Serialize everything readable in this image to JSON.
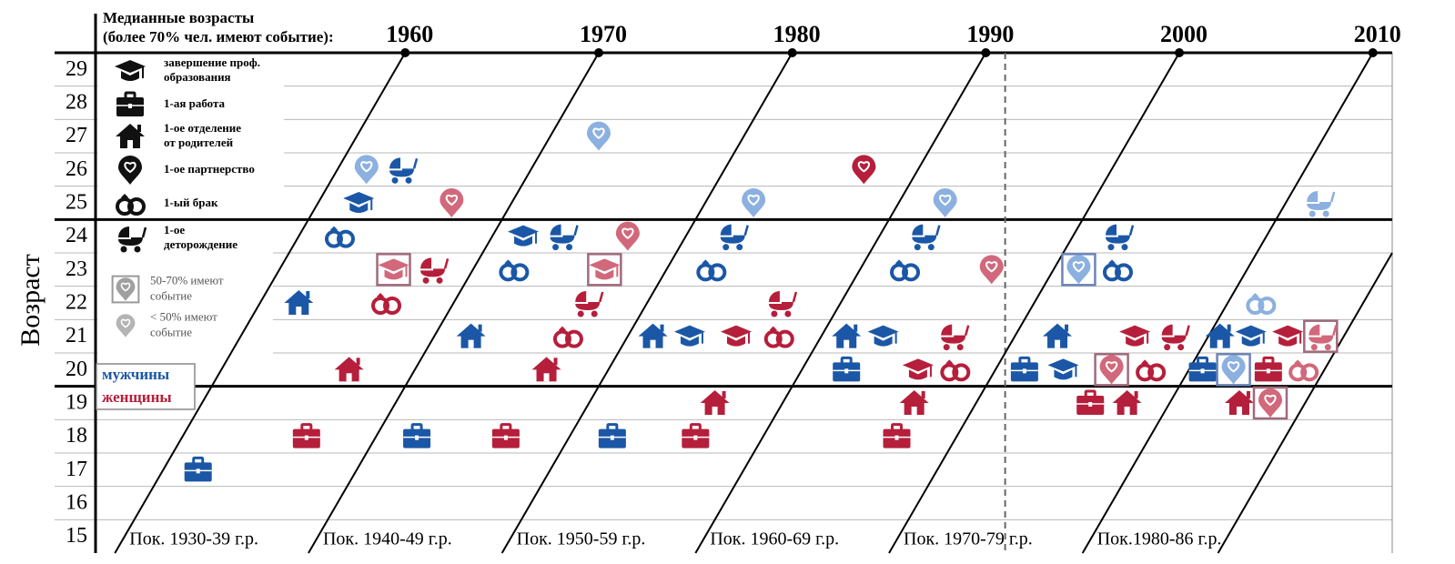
{
  "chart_data": {
    "type": "lexis",
    "title": [
      "Медианные возрасты",
      "(более 70% чел. имеют событие):"
    ],
    "ylabel": "Возраст",
    "xlim": [
      1944,
      2011
    ],
    "xticks": [
      1960,
      1970,
      1980,
      1990,
      2000,
      2010
    ],
    "ylim": [
      14.5,
      29.5
    ],
    "yticks": [
      15,
      16,
      17,
      18,
      19,
      20,
      21,
      22,
      23,
      24,
      25,
      26,
      27,
      28,
      29
    ],
    "hlines": [
      29.5,
      24.5,
      19.5
    ],
    "vline": 1991,
    "cohort_lines": [
      1930,
      1940,
      1950,
      1960,
      1970,
      1980,
      1987
    ],
    "cohort_labels": [
      "Пок. 1930-39 г.р.",
      "Пок. 1940-49 г.р.",
      "Пок. 1950-59 г.р.",
      "Пок. 1960-69 г.р.",
      "Пок. 1970-79 г.р.",
      "Пок.1980-86 г.р."
    ],
    "legend": {
      "color": "#111111",
      "items": [
        {
          "icon": "cap",
          "lines": [
            "завершение проф.",
            "образования"
          ]
        },
        {
          "icon": "briefcase",
          "lines": [
            "1-ая работа"
          ]
        },
        {
          "icon": "house",
          "lines": [
            "1-ое отделение",
            "от родителей"
          ]
        },
        {
          "icon": "pin",
          "lines": [
            "1-ое партнерство"
          ]
        },
        {
          "icon": "rings",
          "lines": [
            "1-ый брак"
          ]
        },
        {
          "icon": "stroller",
          "lines": [
            "1-ое",
            "деторождение"
          ]
        }
      ],
      "levels": [
        {
          "icon": "pin",
          "color": "#a0a0a0",
          "box": "#9a9a9a",
          "lines": [
            "50-70% имеют",
            "событие"
          ]
        },
        {
          "icon": "pin",
          "color": "#b4b4b4",
          "lines": [
            "< 50% имеют",
            "событие"
          ]
        }
      ],
      "sexes": [
        {
          "label": "мужчины",
          "color": "#1b57a6"
        },
        {
          "label": "женщины",
          "color": "#b51f3b"
        }
      ]
    },
    "events": [
      {
        "icon": "pin",
        "color": "#8cb0df",
        "x": 1970,
        "y": 27
      },
      {
        "icon": "pin",
        "color": "#8cb0df",
        "x": 1958,
        "y": 26
      },
      {
        "icon": "stroller",
        "color": "#1b57a6",
        "x": 1959.8,
        "y": 26
      },
      {
        "icon": "pin",
        "color": "#b51f3b",
        "x": 1983.7,
        "y": 26
      },
      {
        "icon": "cap",
        "color": "#1b57a6",
        "x": 1957.6,
        "y": 25
      },
      {
        "icon": "pin",
        "color": "#d1687b",
        "x": 1962.4,
        "y": 25
      },
      {
        "icon": "pin",
        "color": "#8cb0df",
        "x": 1978,
        "y": 25
      },
      {
        "icon": "pin",
        "color": "#8cb0df",
        "x": 1987.9,
        "y": 25
      },
      {
        "icon": "stroller",
        "color": "#8cb0df",
        "x": 2007.2,
        "y": 25
      },
      {
        "icon": "rings",
        "color": "#1b57a6",
        "x": 1956.6,
        "y": 24
      },
      {
        "icon": "cap",
        "color": "#1b57a6",
        "x": 1966.1,
        "y": 24
      },
      {
        "icon": "stroller",
        "color": "#1b57a6",
        "x": 1968.1,
        "y": 24
      },
      {
        "icon": "pin",
        "color": "#d1687b",
        "x": 1971.5,
        "y": 24
      },
      {
        "icon": "stroller",
        "color": "#1b57a6",
        "x": 1976.9,
        "y": 24
      },
      {
        "icon": "stroller",
        "color": "#1b57a6",
        "x": 1986.8,
        "y": 24
      },
      {
        "icon": "stroller",
        "color": "#1b57a6",
        "x": 1996.8,
        "y": 24
      },
      {
        "icon": "cap",
        "color": "#d1687b",
        "box": "#a06a7c",
        "x": 1959.4,
        "y": 23
      },
      {
        "icon": "stroller",
        "color": "#b51f3b",
        "x": 1961.4,
        "y": 23
      },
      {
        "icon": "rings",
        "color": "#1b57a6",
        "x": 1965.6,
        "y": 23
      },
      {
        "icon": "cap",
        "color": "#d1687b",
        "box": "#a06a7c",
        "x": 1970.3,
        "y": 23
      },
      {
        "icon": "rings",
        "color": "#1b57a6",
        "x": 1975.8,
        "y": 23
      },
      {
        "icon": "rings",
        "color": "#1b57a6",
        "x": 1985.8,
        "y": 23
      },
      {
        "icon": "pin",
        "color": "#d1687b",
        "x": 1990.3,
        "y": 23
      },
      {
        "icon": "pin",
        "color": "#8cb0df",
        "box": "#6b84b8",
        "x": 1994.8,
        "y": 23
      },
      {
        "icon": "rings",
        "color": "#1b57a6",
        "x": 1996.8,
        "y": 23
      },
      {
        "icon": "house",
        "color": "#1b57a6",
        "x": 1954.5,
        "y": 22
      },
      {
        "icon": "rings",
        "color": "#b51f3b",
        "x": 1959,
        "y": 22
      },
      {
        "icon": "stroller",
        "color": "#b51f3b",
        "x": 1969.4,
        "y": 22
      },
      {
        "icon": "stroller",
        "color": "#b51f3b",
        "x": 1979.4,
        "y": 22
      },
      {
        "icon": "rings",
        "color": "#8cb0df",
        "x": 2004.2,
        "y": 22
      },
      {
        "icon": "house",
        "color": "#1b57a6",
        "x": 1963.4,
        "y": 21
      },
      {
        "icon": "rings",
        "color": "#b51f3b",
        "x": 1968.4,
        "y": 21
      },
      {
        "icon": "house",
        "color": "#1b57a6",
        "x": 1972.8,
        "y": 21
      },
      {
        "icon": "cap",
        "color": "#1b57a6",
        "x": 1974.7,
        "y": 21
      },
      {
        "icon": "cap",
        "color": "#b51f3b",
        "x": 1977.1,
        "y": 21
      },
      {
        "icon": "rings",
        "color": "#b51f3b",
        "x": 1979.3,
        "y": 21
      },
      {
        "icon": "house",
        "color": "#1b57a6",
        "x": 1982.8,
        "y": 21
      },
      {
        "icon": "cap",
        "color": "#1b57a6",
        "x": 1984.7,
        "y": 21
      },
      {
        "icon": "stroller",
        "color": "#b51f3b",
        "x": 1988.3,
        "y": 21
      },
      {
        "icon": "house",
        "color": "#1b57a6",
        "x": 1993.7,
        "y": 21
      },
      {
        "icon": "cap",
        "color": "#b51f3b",
        "x": 1997.7,
        "y": 21
      },
      {
        "icon": "stroller",
        "color": "#b51f3b",
        "x": 1999.7,
        "y": 21
      },
      {
        "icon": "house",
        "color": "#1b57a6",
        "x": 2002.1,
        "y": 21
      },
      {
        "icon": "cap",
        "color": "#1b57a6",
        "x": 2003.7,
        "y": 21
      },
      {
        "icon": "cap",
        "color": "#b51f3b",
        "x": 2005.6,
        "y": 21
      },
      {
        "icon": "stroller",
        "color": "#d1687b",
        "box": "#a06a7c",
        "x": 2007.3,
        "y": 21
      },
      {
        "icon": "house",
        "color": "#b51f3b",
        "x": 1957.1,
        "y": 20
      },
      {
        "icon": "house",
        "color": "#b51f3b",
        "x": 1967.3,
        "y": 20
      },
      {
        "icon": "briefcase",
        "color": "#1b57a6",
        "x": 1982.8,
        "y": 20
      },
      {
        "icon": "cap",
        "color": "#b51f3b",
        "x": 1986.5,
        "y": 20
      },
      {
        "icon": "rings",
        "color": "#b51f3b",
        "x": 1988.4,
        "y": 20
      },
      {
        "icon": "briefcase",
        "color": "#1b57a6",
        "x": 1992,
        "y": 20
      },
      {
        "icon": "cap",
        "color": "#1b57a6",
        "x": 1994,
        "y": 20
      },
      {
        "icon": "pin",
        "color": "#d1687b",
        "box": "#a06a7c",
        "x": 1996.5,
        "y": 20
      },
      {
        "icon": "rings",
        "color": "#b51f3b",
        "x": 1998.5,
        "y": 20
      },
      {
        "icon": "briefcase",
        "color": "#1b57a6",
        "x": 2001.2,
        "y": 20
      },
      {
        "icon": "pin",
        "color": "#8cb0df",
        "box": "#6b84b8",
        "x": 2002.8,
        "y": 20
      },
      {
        "icon": "briefcase",
        "color": "#b51f3b",
        "x": 2004.6,
        "y": 20
      },
      {
        "icon": "rings",
        "color": "#d1687b",
        "x": 2006.4,
        "y": 20
      },
      {
        "icon": "house",
        "color": "#b51f3b",
        "x": 1976,
        "y": 19
      },
      {
        "icon": "house",
        "color": "#b51f3b",
        "x": 1986.3,
        "y": 19
      },
      {
        "icon": "briefcase",
        "color": "#b51f3b",
        "x": 1995.4,
        "y": 19
      },
      {
        "icon": "house",
        "color": "#b51f3b",
        "x": 1997.3,
        "y": 19
      },
      {
        "icon": "house",
        "color": "#b51f3b",
        "x": 2003.1,
        "y": 19
      },
      {
        "icon": "pin",
        "color": "#d1687b",
        "box": "#a06a7c",
        "x": 2004.7,
        "y": 19
      },
      {
        "icon": "briefcase",
        "color": "#b51f3b",
        "x": 1954.9,
        "y": 18
      },
      {
        "icon": "briefcase",
        "color": "#1b57a6",
        "x": 1960.6,
        "y": 18
      },
      {
        "icon": "briefcase",
        "color": "#b51f3b",
        "x": 1965.2,
        "y": 18
      },
      {
        "icon": "briefcase",
        "color": "#1b57a6",
        "x": 1970.7,
        "y": 18
      },
      {
        "icon": "briefcase",
        "color": "#b51f3b",
        "x": 1975,
        "y": 18
      },
      {
        "icon": "briefcase",
        "color": "#b51f3b",
        "x": 1985.4,
        "y": 18
      },
      {
        "icon": "briefcase",
        "color": "#1b57a6",
        "x": 1949.3,
        "y": 17
      }
    ]
  }
}
